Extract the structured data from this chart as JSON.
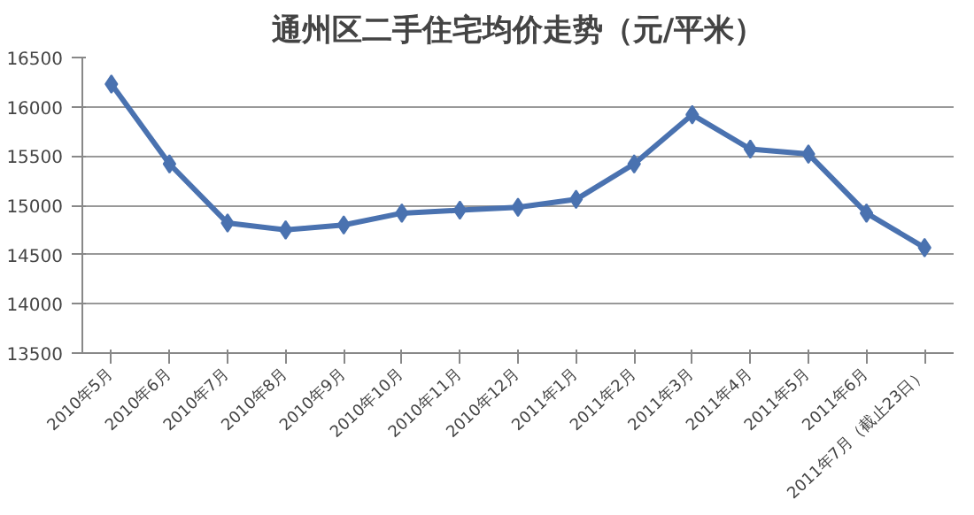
{
  "chart_data": {
    "type": "line",
    "title": "通州区二手住宅均价走势（元/平米）",
    "categories": [
      "2010年5月",
      "2010年6月",
      "2010年7月",
      "2010年8月",
      "2010年9月",
      "2010年10月",
      "2010年11月",
      "2010年12月",
      "2011年1月",
      "2011年2月",
      "2011年3月",
      "2011年4月",
      "2011年5月",
      "2011年6月",
      "2011年7月（截止23日）"
    ],
    "series": [
      {
        "color": "#4a72b0",
        "values": [
          16230,
          15420,
          14820,
          14750,
          14800,
          14920,
          14950,
          14980,
          15060,
          15420,
          15920,
          15570,
          15520,
          14920,
          14570
        ]
      }
    ],
    "ylim": [
      13500,
      16500
    ],
    "yticks": [
      13500,
      14000,
      14500,
      15000,
      15500,
      16000,
      16500
    ],
    "grid": "y",
    "marker": "diamond",
    "line_style": "solid"
  }
}
